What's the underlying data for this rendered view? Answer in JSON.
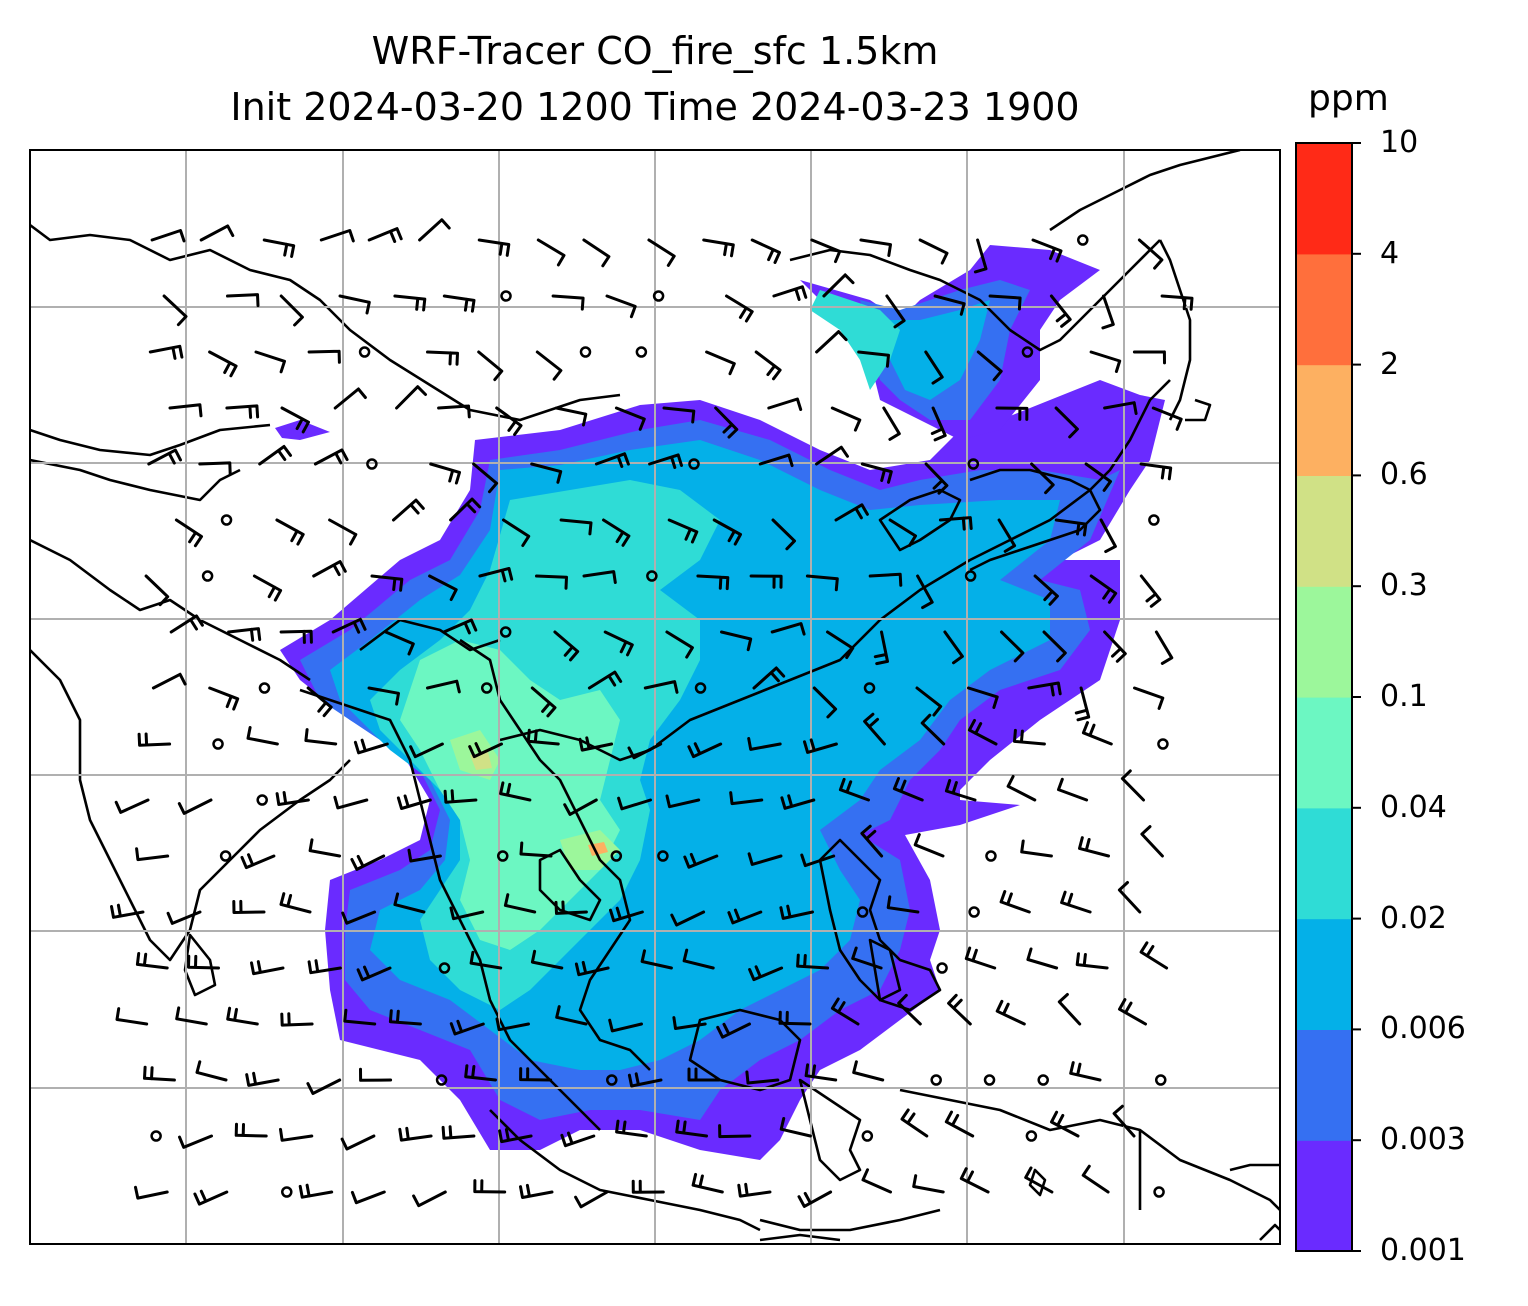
{
  "title": {
    "line1": "WRF-Tracer CO_fire_sfc 1.5km",
    "line2": "Init 2024-03-20 1200 Time 2024-03-23 1900"
  },
  "colorbar": {
    "unit": "ppm",
    "levels": [
      "0.001",
      "0.003",
      "0.006",
      "0.02",
      "0.04",
      "0.1",
      "0.3",
      "0.6",
      "2",
      "4",
      "10"
    ],
    "colors": [
      "#6a2bff",
      "#3570f2",
      "#04b0e8",
      "#2fdcd6",
      "#6cf7c2",
      "#9cf79b",
      "#d0e186",
      "#fdb061",
      "#ff6f3c",
      "#ff2a17"
    ]
  },
  "map": {
    "coastline_color": "#000000",
    "gridline_color": "#b0b0b0",
    "overlay": "wind barbs"
  }
}
